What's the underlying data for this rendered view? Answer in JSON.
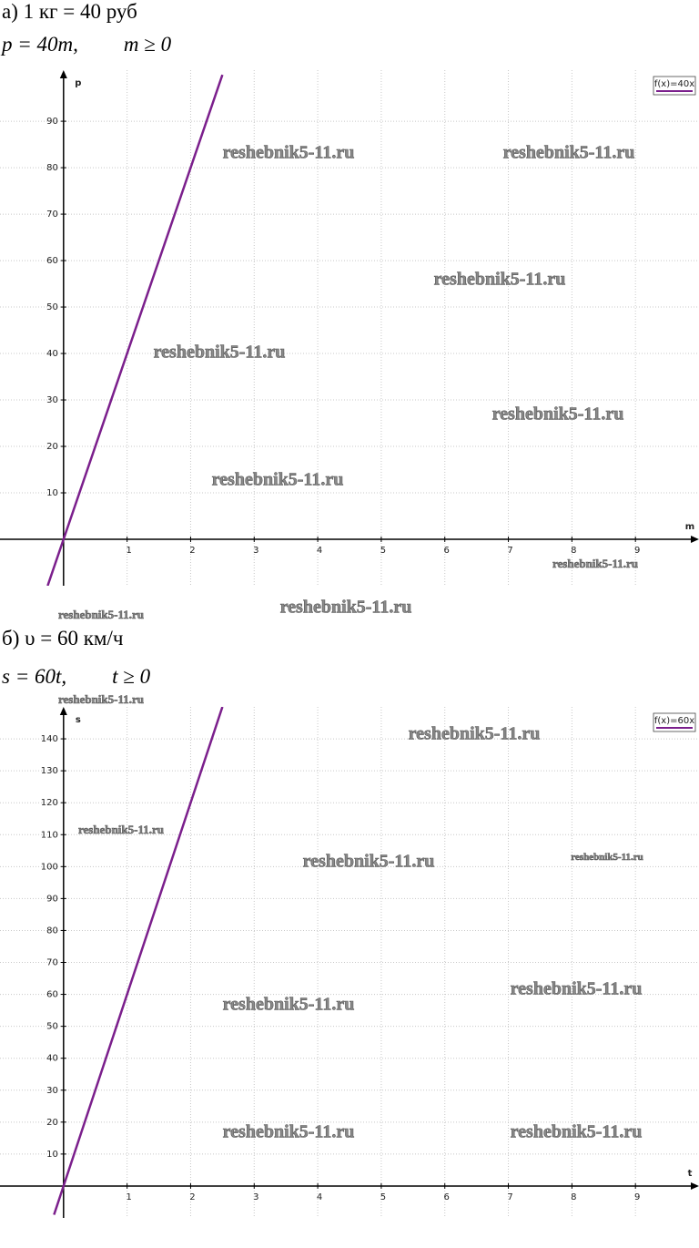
{
  "part_a": {
    "heading": "а) 1 кг = 40 руб",
    "formula": "p = 40m,",
    "condition": "m ≥ 0"
  },
  "part_b": {
    "heading": "б) υ = 60 км/ч",
    "formula": "s = 60t,",
    "condition": "t ≥ 0"
  },
  "watermark": "reshebnik5-11.ru",
  "chart_data": [
    {
      "type": "line",
      "xlabel": "m",
      "ylabel": "p",
      "x": [
        -0.25,
        2.5
      ],
      "series": [
        {
          "name": "f(x)=40x",
          "color": "#7b1f8c",
          "values": [
            -10,
            100
          ]
        }
      ],
      "xlim": [
        -1,
        10
      ],
      "ylim": [
        -10,
        101
      ],
      "xticks": [
        1,
        2,
        3,
        4,
        5,
        6,
        7,
        8,
        9
      ],
      "yticks": [
        10,
        20,
        30,
        40,
        50,
        60,
        70,
        80,
        90
      ],
      "grid": true,
      "legend": "top-right"
    },
    {
      "type": "line",
      "xlabel": "t",
      "ylabel": "s",
      "x": [
        -0.15,
        2.5
      ],
      "series": [
        {
          "name": "f(x)=60x",
          "color": "#7b1f8c",
          "values": [
            -9,
            150
          ]
        }
      ],
      "xlim": [
        -1,
        10
      ],
      "ylim": [
        -10,
        150
      ],
      "xticks": [
        1,
        2,
        3,
        4,
        5,
        6,
        7,
        8,
        9
      ],
      "yticks": [
        10,
        20,
        30,
        40,
        50,
        60,
        70,
        80,
        90,
        100,
        110,
        120,
        130,
        140
      ],
      "grid": true,
      "legend": "top-right"
    }
  ]
}
